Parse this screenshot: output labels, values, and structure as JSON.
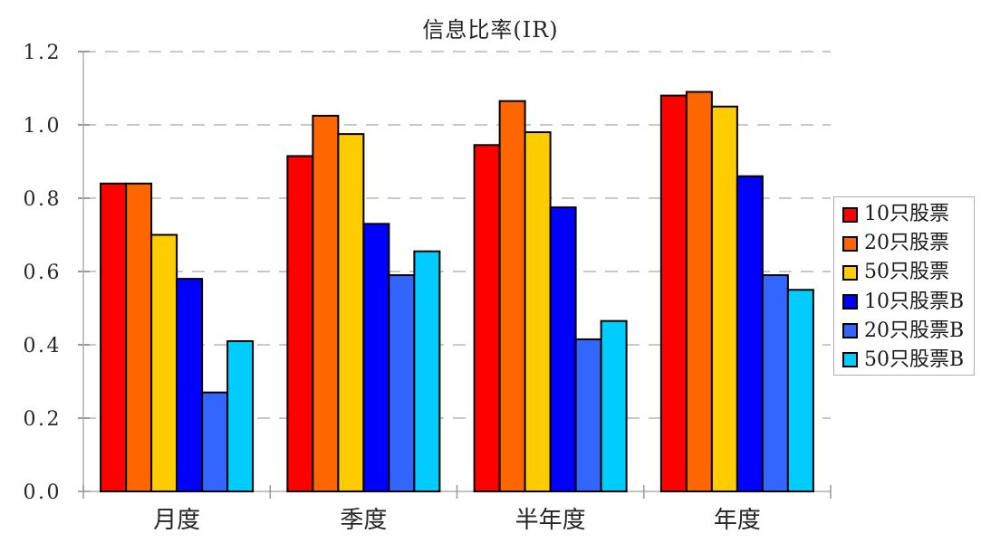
{
  "chart_data": {
    "type": "bar",
    "title": "信息比率(IR)",
    "categories": [
      "月度",
      "季度",
      "半年度",
      "年度"
    ],
    "series": [
      {
        "name": "10只股票",
        "color": "#FF0000",
        "values": [
          0.84,
          0.915,
          0.945,
          1.08
        ]
      },
      {
        "name": "20只股票",
        "color": "#FF6600",
        "values": [
          0.84,
          1.025,
          1.065,
          1.09
        ]
      },
      {
        "name": "50只股票",
        "color": "#FFCC00",
        "values": [
          0.7,
          0.975,
          0.98,
          1.05
        ]
      },
      {
        "name": "10只股票B",
        "color": "#0000FF",
        "values": [
          0.58,
          0.73,
          0.775,
          0.86
        ]
      },
      {
        "name": "20只股票B",
        "color": "#3366FF",
        "values": [
          0.27,
          0.59,
          0.415,
          0.59
        ]
      },
      {
        "name": "50只股票B",
        "color": "#00CCFF",
        "values": [
          0.41,
          0.655,
          0.465,
          0.55
        ]
      }
    ],
    "ylim": [
      0,
      1.2
    ],
    "ytick_labels": [
      "0.0",
      "0.2",
      "0.4",
      "0.6",
      "0.8",
      "1.0",
      "1.2"
    ],
    "grid": "horizontal-dashed",
    "legend_position": "right",
    "colors": {
      "axis": "#b0b0b0",
      "gridline": "#c9c9c9",
      "tick": "#999999",
      "text": "#262626",
      "bar_outline": "#000000",
      "background": "#ffffff"
    }
  }
}
